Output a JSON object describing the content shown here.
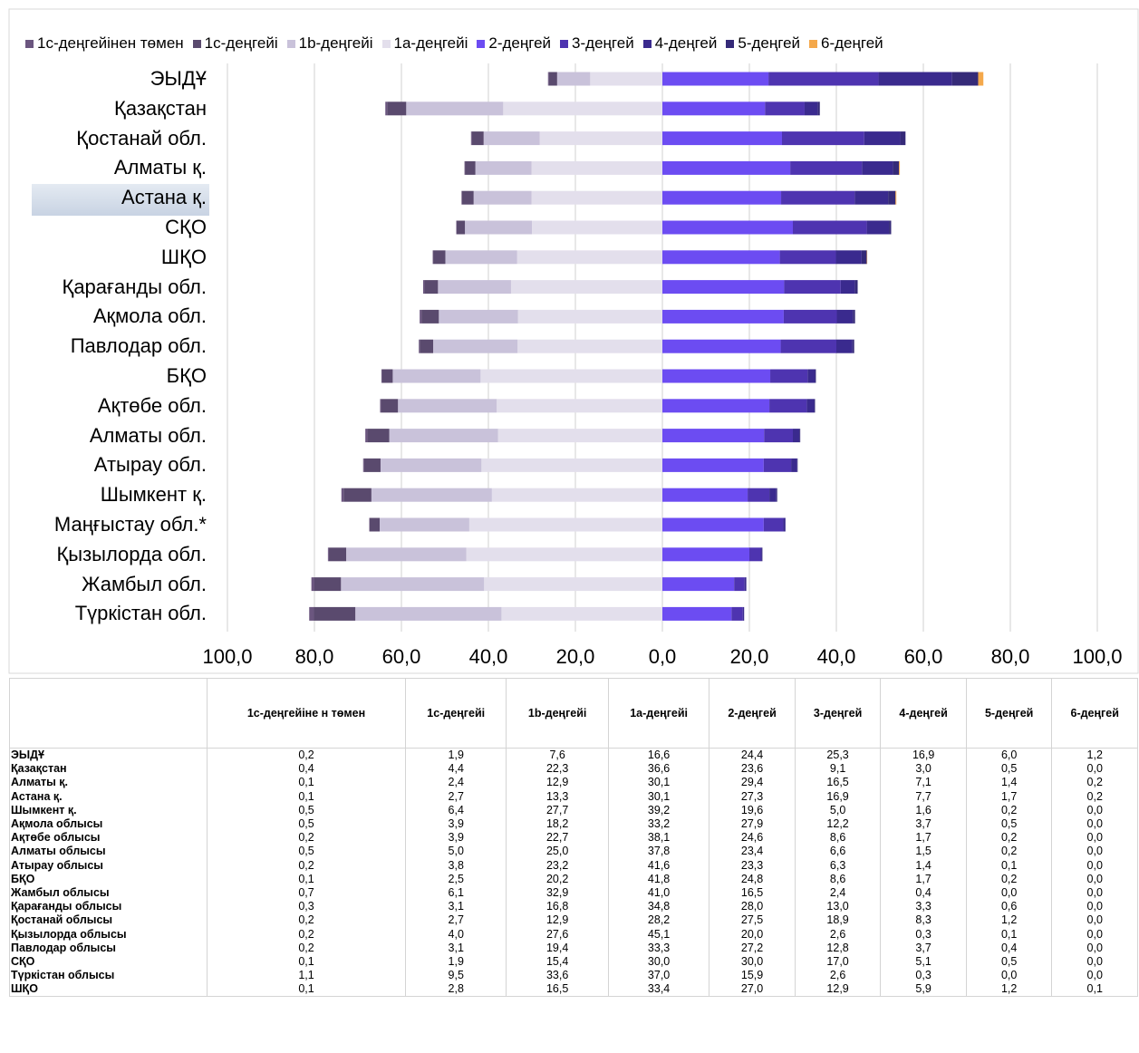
{
  "chart_data": {
    "type": "bar",
    "orientation": "horizontal-diverging",
    "stacked": true,
    "xlim": [
      -100,
      100
    ],
    "xticks": [
      "100,0",
      "80,0",
      "60,0",
      "40,0",
      "20,0",
      "0,0",
      "20,0",
      "40,0",
      "60,0",
      "80,0",
      "100,0"
    ],
    "legend_position": "top",
    "grid": true,
    "negative_series": [
      "1c-деңгейінен төмен",
      "1c-деңгейі",
      "1b-деңгейі",
      "1a-деңгейі"
    ],
    "series_names": [
      "1с-деңгейінен төмен",
      "1с-деңгейі",
      "1b-деңгейі",
      "1а-деңгейі",
      "2-деңгей",
      "3-деңгей",
      "4-деңгей",
      "5-деңгей",
      "6-деңгей"
    ],
    "series_colors": [
      "#6b567f",
      "#5a4a6e",
      "#c9c2da",
      "#e3dfec",
      "#6c4cf2",
      "#4e34b0",
      "#3a2a8e",
      "#352a78",
      "#f4a84b"
    ],
    "categories": [
      "ЭЫДҰ",
      "Қазақстан",
      "Қостанай обл.",
      "Алматы қ.",
      "Астана қ.",
      "СҚО",
      "ШҚО",
      "Қарағанды обл.",
      "Ақмола обл.",
      "Павлодар обл.",
      "БҚО",
      "Ақтөбе обл.",
      "Алматы обл.",
      "Атырау обл.",
      "Шымкент қ.",
      "Маңғыстау  обл.*",
      "Қызылорда обл.",
      "Жамбыл обл.",
      "Түркістан обл."
    ],
    "highlighted_category": "Астана қ.",
    "values": [
      [
        0.2,
        1.9,
        7.6,
        16.6,
        24.4,
        25.3,
        16.9,
        6.0,
        1.2
      ],
      [
        0.4,
        4.4,
        22.3,
        36.6,
        23.6,
        9.1,
        3.0,
        0.5,
        0.0
      ],
      [
        0.2,
        2.7,
        12.9,
        28.2,
        27.5,
        18.9,
        8.3,
        1.2,
        0.0
      ],
      [
        0.1,
        2.4,
        12.9,
        30.1,
        29.4,
        16.5,
        7.1,
        1.4,
        0.2
      ],
      [
        0.1,
        2.7,
        13.3,
        30.1,
        27.3,
        16.9,
        7.7,
        1.7,
        0.2
      ],
      [
        0.1,
        1.9,
        15.4,
        30.0,
        30.0,
        17.0,
        5.1,
        0.5,
        0.0
      ],
      [
        0.1,
        2.8,
        16.5,
        33.4,
        27.0,
        12.9,
        5.9,
        1.2,
        0.1
      ],
      [
        0.3,
        3.1,
        16.8,
        34.8,
        28.0,
        13.0,
        3.3,
        0.6,
        0.0
      ],
      [
        0.5,
        3.9,
        18.2,
        33.2,
        27.9,
        12.2,
        3.7,
        0.5,
        0.0
      ],
      [
        0.2,
        3.1,
        19.4,
        33.3,
        27.2,
        12.8,
        3.7,
        0.4,
        0.0
      ],
      [
        0.1,
        2.5,
        20.2,
        41.8,
        24.8,
        8.6,
        1.7,
        0.2,
        0.0
      ],
      [
        0.2,
        3.9,
        22.7,
        38.1,
        24.6,
        8.6,
        1.7,
        0.2,
        0.0
      ],
      [
        0.5,
        5.0,
        25.0,
        37.8,
        23.4,
        6.6,
        1.5,
        0.2,
        0.0
      ],
      [
        0.2,
        3.8,
        23.2,
        41.6,
        23.3,
        6.3,
        1.4,
        0.1,
        0.0
      ],
      [
        0.5,
        6.4,
        27.7,
        39.2,
        19.6,
        5.0,
        1.6,
        0.2,
        0.0
      ],
      [
        0.1,
        2.3,
        20.6,
        44.4,
        23.3,
        4.5,
        0.5,
        0.0,
        0.0
      ],
      [
        0.2,
        4.0,
        27.6,
        45.1,
        20.0,
        2.6,
        0.3,
        0.1,
        0.0
      ],
      [
        0.7,
        6.1,
        32.9,
        41.0,
        16.5,
        2.4,
        0.4,
        0.0,
        0.0
      ],
      [
        1.1,
        9.5,
        33.6,
        37.0,
        15.9,
        2.6,
        0.3,
        0.0,
        0.0
      ]
    ]
  },
  "table": {
    "headers": [
      "",
      "1с-деңгейіне н төмен",
      "1с-деңгейі",
      "1b-деңгейі",
      "1а-деңгейі",
      "2-деңгей",
      "3-деңгей",
      "4-деңгей",
      "5-деңгей",
      "6-деңгей"
    ],
    "rows": [
      [
        "ЭЫДҰ",
        "0,2",
        "1,9",
        "7,6",
        "16,6",
        "24,4",
        "25,3",
        "16,9",
        "6,0",
        "1,2"
      ],
      [
        "Қазақстан",
        "0,4",
        "4,4",
        "22,3",
        "36,6",
        "23,6",
        "9,1",
        "3,0",
        "0,5",
        "0,0"
      ],
      [
        "Алматы қ.",
        "0,1",
        "2,4",
        "12,9",
        "30,1",
        "29,4",
        "16,5",
        "7,1",
        "1,4",
        "0,2"
      ],
      [
        "Астана қ.",
        "0,1",
        "2,7",
        "13,3",
        "30,1",
        "27,3",
        "16,9",
        "7,7",
        "1,7",
        "0,2"
      ],
      [
        "Шымкент қ.",
        "0,5",
        "6,4",
        "27,7",
        "39,2",
        "19,6",
        "5,0",
        "1,6",
        "0,2",
        "0,0"
      ],
      [
        "Ақмола облысы",
        "0,5",
        "3,9",
        "18,2",
        "33,2",
        "27,9",
        "12,2",
        "3,7",
        "0,5",
        "0,0"
      ],
      [
        "Ақтөбе облысы",
        "0,2",
        "3,9",
        "22,7",
        "38,1",
        "24,6",
        "8,6",
        "1,7",
        "0,2",
        "0,0"
      ],
      [
        "Алматы облысы",
        "0,5",
        "5,0",
        "25,0",
        "37,8",
        "23,4",
        "6,6",
        "1,5",
        "0,2",
        "0,0"
      ],
      [
        "Атырау облысы",
        "0,2",
        "3,8",
        "23,2",
        "41,6",
        "23,3",
        "6,3",
        "1,4",
        "0,1",
        "0,0"
      ],
      [
        "БҚО",
        "0,1",
        "2,5",
        "20,2",
        "41,8",
        "24,8",
        "8,6",
        "1,7",
        "0,2",
        "0,0"
      ],
      [
        "Жамбыл облысы",
        "0,7",
        "6,1",
        "32,9",
        "41,0",
        "16,5",
        "2,4",
        "0,4",
        "0,0",
        "0,0"
      ],
      [
        "Қарағанды облысы",
        "0,3",
        "3,1",
        "16,8",
        "34,8",
        "28,0",
        "13,0",
        "3,3",
        "0,6",
        "0,0"
      ],
      [
        "Қостанай облысы",
        "0,2",
        "2,7",
        "12,9",
        "28,2",
        "27,5",
        "18,9",
        "8,3",
        "1,2",
        "0,0"
      ],
      [
        "Қызылорда облысы",
        "0,2",
        "4,0",
        "27,6",
        "45,1",
        "20,0",
        "2,6",
        "0,3",
        "0,1",
        "0,0"
      ],
      [
        "Павлодар облысы",
        "0,2",
        "3,1",
        "19,4",
        "33,3",
        "27,2",
        "12,8",
        "3,7",
        "0,4",
        "0,0"
      ],
      [
        "СҚО",
        "0,1",
        "1,9",
        "15,4",
        "30,0",
        "30,0",
        "17,0",
        "5,1",
        "0,5",
        "0,0"
      ],
      [
        "Түркістан облысы",
        "1,1",
        "9,5",
        "33,6",
        "37,0",
        "15,9",
        "2,6",
        "0,3",
        "0,0",
        "0,0"
      ],
      [
        "ШҚО",
        "0,1",
        "2,8",
        "16,5",
        "33,4",
        "27,0",
        "12,9",
        "5,9",
        "1,2",
        "0,1"
      ]
    ]
  }
}
